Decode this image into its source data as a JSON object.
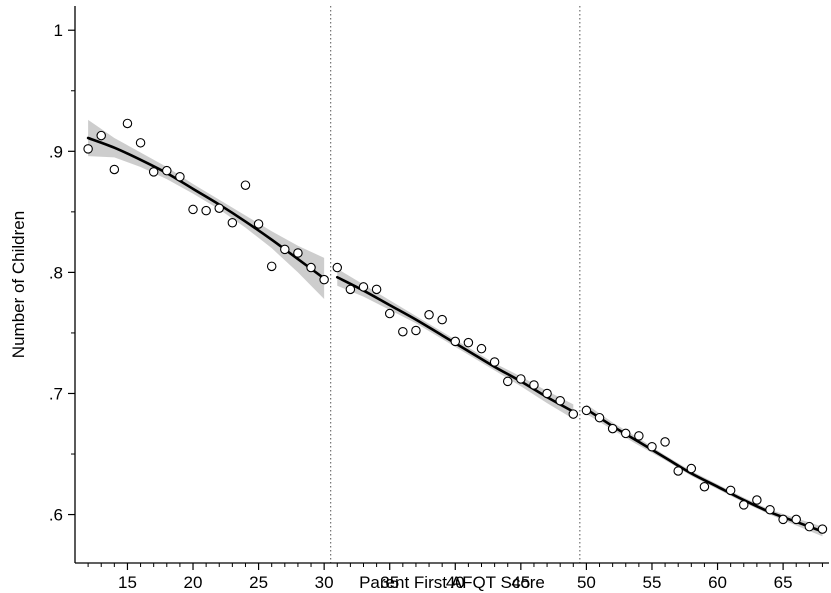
{
  "chart_data": {
    "type": "scatter",
    "title": "",
    "xlabel": "Parent First AFQT Score",
    "ylabel": "Number of Children",
    "xlim": [
      11,
      68.5
    ],
    "ylim": [
      0.56,
      1.02
    ],
    "xticks": [
      15,
      20,
      25,
      30,
      35,
      40,
      45,
      50,
      55,
      60,
      65
    ],
    "yticks": [
      0.6,
      0.7,
      0.8,
      0.9,
      1.0
    ],
    "ytick_labels": [
      ".6",
      ".7",
      ".8",
      ".9",
      "1"
    ],
    "cutoffs": [
      30.5,
      49.5
    ],
    "grid": false,
    "legend": "none",
    "colors": {
      "line": "#000000",
      "band": "#c8c8c8",
      "marker_edge": "#000000",
      "cutoff": "#555555"
    },
    "series": [
      {
        "kind": "points",
        "x": [
          12,
          13,
          14,
          15,
          16,
          17,
          18,
          19,
          20,
          21,
          22,
          23,
          24,
          25,
          26,
          27,
          28,
          29,
          30,
          31,
          32,
          33,
          34,
          35,
          36,
          37,
          38,
          39,
          40,
          41,
          42,
          43,
          44,
          45,
          46,
          47,
          48,
          49,
          50,
          51,
          52,
          53,
          54,
          55,
          56,
          57,
          58,
          59,
          61,
          62,
          63,
          64,
          65,
          66,
          67,
          68
        ],
        "y": [
          0.902,
          0.913,
          0.885,
          0.923,
          0.907,
          0.883,
          0.884,
          0.879,
          0.852,
          0.851,
          0.853,
          0.841,
          0.872,
          0.84,
          0.805,
          0.819,
          0.816,
          0.804,
          0.794,
          0.804,
          0.786,
          0.788,
          0.786,
          0.766,
          0.751,
          0.752,
          0.765,
          0.761,
          0.743,
          0.742,
          0.737,
          0.726,
          0.71,
          0.712,
          0.707,
          0.7,
          0.694,
          0.683,
          0.686,
          0.68,
          0.671,
          0.667,
          0.665,
          0.656,
          0.66,
          0.636,
          0.638,
          0.623,
          0.62,
          0.608,
          0.612,
          0.604,
          0.596,
          0.596,
          0.59,
          0.588
        ]
      },
      {
        "kind": "fit",
        "x": [
          12,
          14,
          16,
          18,
          20,
          22,
          24,
          26,
          28,
          30
        ],
        "y": [
          0.911,
          0.903,
          0.893,
          0.882,
          0.869,
          0.856,
          0.842,
          0.827,
          0.811,
          0.795
        ],
        "ci_lower": [
          0.896,
          0.895,
          0.887,
          0.877,
          0.865,
          0.852,
          0.837,
          0.82,
          0.8,
          0.778
        ],
        "ci_upper": [
          0.926,
          0.911,
          0.899,
          0.887,
          0.873,
          0.86,
          0.847,
          0.834,
          0.822,
          0.812
        ]
      },
      {
        "kind": "fit",
        "x": [
          31,
          33,
          35,
          37,
          39,
          41,
          43,
          45,
          47,
          49
        ],
        "y": [
          0.796,
          0.785,
          0.773,
          0.761,
          0.748,
          0.735,
          0.722,
          0.71,
          0.697,
          0.685
        ],
        "ci_lower": [
          0.789,
          0.78,
          0.769,
          0.758,
          0.745,
          0.732,
          0.719,
          0.706,
          0.692,
          0.679
        ],
        "ci_upper": [
          0.803,
          0.79,
          0.777,
          0.764,
          0.751,
          0.738,
          0.725,
          0.714,
          0.702,
          0.691
        ]
      },
      {
        "kind": "fit",
        "x": [
          50,
          52,
          54,
          56,
          58,
          60,
          62,
          64,
          66,
          68
        ],
        "y": [
          0.687,
          0.673,
          0.66,
          0.647,
          0.634,
          0.623,
          0.612,
          0.602,
          0.594,
          0.586
        ],
        "ci_lower": [
          0.683,
          0.67,
          0.657,
          0.645,
          0.632,
          0.621,
          0.61,
          0.6,
          0.591,
          0.582
        ],
        "ci_upper": [
          0.691,
          0.676,
          0.663,
          0.649,
          0.636,
          0.625,
          0.614,
          0.604,
          0.597,
          0.59
        ]
      }
    ]
  }
}
